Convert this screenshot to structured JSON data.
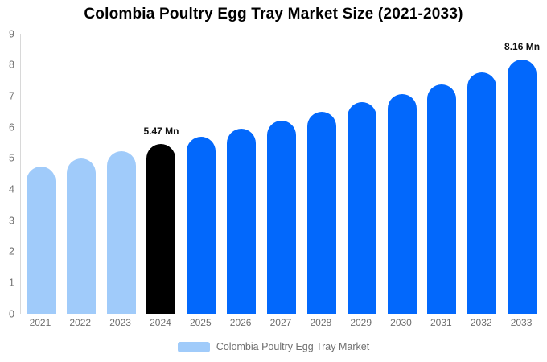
{
  "title": "Colombia Poultry Egg Tray Market Size (2021-2033)",
  "chart_data": {
    "type": "bar",
    "title": "Colombia Poultry Egg Tray Market Size (2021-2033)",
    "categories": [
      "2021",
      "2022",
      "2023",
      "2024",
      "2025",
      "2026",
      "2027",
      "2028",
      "2029",
      "2030",
      "2031",
      "2032",
      "2033"
    ],
    "values": [
      4.73,
      4.99,
      5.22,
      5.47,
      5.7,
      5.96,
      6.22,
      6.5,
      6.79,
      7.07,
      7.38,
      7.75,
      8.16
    ],
    "bar_colors": [
      "#A0CBFA",
      "#A0CBFA",
      "#A0CBFA",
      "#000000",
      "#0268FC",
      "#0268FC",
      "#0268FC",
      "#0268FC",
      "#0268FC",
      "#0268FC",
      "#0268FC",
      "#0268FC",
      "#0268FC"
    ],
    "annotations": [
      {
        "category": "2024",
        "text": "5.47 Mn"
      },
      {
        "category": "2033",
        "text": "8.16 Mn"
      }
    ],
    "xlabel": "",
    "ylabel": "",
    "ylim": [
      0,
      9
    ],
    "yticks": [
      0,
      1,
      2,
      3,
      4,
      5,
      6,
      7,
      8,
      9
    ],
    "grid": false,
    "legend_position": "bottom",
    "legend": [
      {
        "label": "Colombia Poultry Egg Tray Market",
        "color": "#A0CBFA"
      }
    ],
    "unit": "Mn"
  },
  "colors": {
    "bar_historical": "#A0CBFA",
    "bar_highlight": "#000000",
    "bar_forecast": "#0268FC",
    "axis_line": "#d8d8d8",
    "tick_text": "#6f6f6f",
    "annotation_text": "#111111",
    "title_text": "#000000",
    "background": "#ffffff"
  }
}
